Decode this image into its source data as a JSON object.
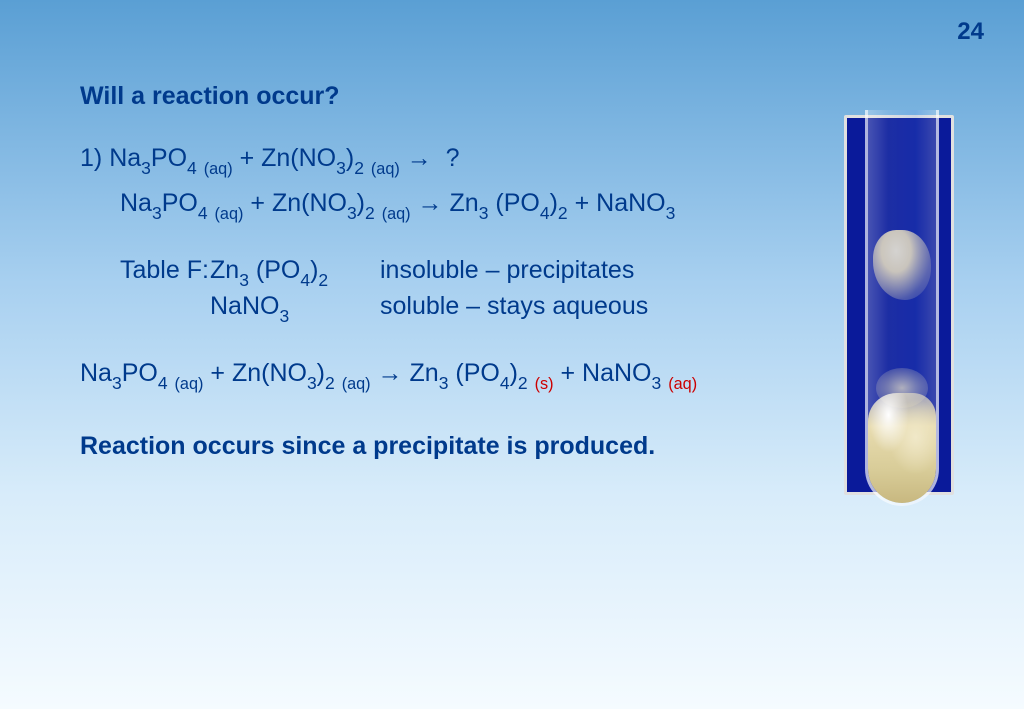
{
  "page_number": "24",
  "heading": "Will a reaction occur?",
  "item_number": "1)",
  "reactant1": {
    "base": "Na",
    "s1": "3",
    "mid": "PO",
    "s2": "4",
    "state": "(aq)"
  },
  "reactant2": {
    "base": "Zn(NO",
    "s1": "3",
    "mid": ")",
    "s2": "2",
    "state": "(aq)"
  },
  "product1": {
    "base": "Zn",
    "s1": "3",
    "mid": " (PO",
    "s2": "4",
    "mid2": ")",
    "s3": "2"
  },
  "product2": {
    "base": "NaNO",
    "s1": "3"
  },
  "arrow": "→",
  "plus": "+",
  "question": "?",
  "table_label": "Table F:",
  "table_row1_desc": "insoluble – precipitates",
  "table_row2_desc": "soluble – stays aqueous",
  "state_s": "(s)",
  "state_aq": "(aq)",
  "conclusion": "Reaction occurs since a precipitate is produced.",
  "colors": {
    "text": "#003a8c",
    "red": "#cc0000",
    "bg_top": "#5a9fd4",
    "bg_bottom": "#f5fbff",
    "tube_bg": "#0a1a9a"
  }
}
